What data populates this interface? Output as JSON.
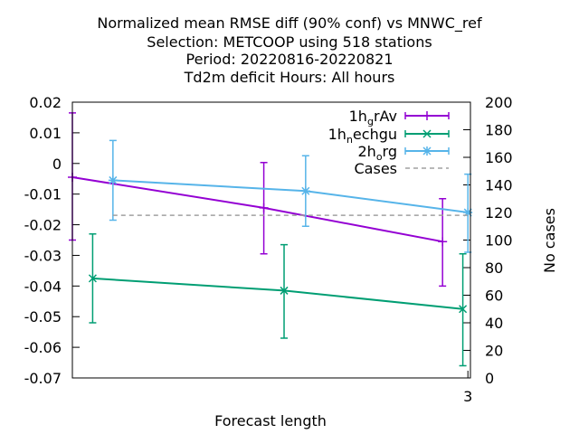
{
  "chart_data": {
    "type": "line",
    "title_lines": [
      "Normalized mean RMSE diff (90% conf) vs MNWC_ref",
      "Selection: METCOOP using   518 stations",
      "Period: 20220816-20220821",
      "Td2m deficit   Hours:  All hours"
    ],
    "xlabel": "Forecast length",
    "ylabel": "",
    "y2label": "No cases",
    "x_ticks": [
      {
        "value": 3,
        "label": "3"
      }
    ],
    "y_ticks": [
      "0.02",
      "0.01",
      "0",
      "-0.01",
      "-0.02",
      "-0.03",
      "-0.04",
      "-0.05",
      "-0.06",
      "-0.07"
    ],
    "y_tick_values": [
      0.02,
      0.01,
      0,
      -0.01,
      -0.02,
      -0.03,
      -0.04,
      -0.05,
      -0.06,
      -0.07
    ],
    "y2_ticks": [
      "200",
      "180",
      "160",
      "140",
      "120",
      "100",
      "80",
      "60",
      "40",
      "20",
      "0"
    ],
    "y2_tick_values": [
      200,
      180,
      160,
      140,
      120,
      100,
      80,
      60,
      40,
      20,
      0
    ],
    "xlim": [
      -0.12,
      3.02
    ],
    "ylim": [
      -0.07,
      0.02
    ],
    "y2lim": [
      0,
      200
    ],
    "legend_position": "top-right",
    "series": [
      {
        "name": "1h_grAv",
        "legend_parts": [
          [
            "1h",
            ""
          ],
          [
            "g",
            "sub"
          ],
          [
            "rAv",
            ""
          ]
        ],
        "color": "#9400d3",
        "marker": "plus",
        "axis": "y",
        "points": [
          {
            "x": -0.12,
            "y": -0.0045,
            "low": -0.025,
            "high": 0.0165
          },
          {
            "x": 1.39,
            "y": -0.0145,
            "low": -0.0295,
            "high": 0.0003
          },
          {
            "x": 2.8,
            "y": -0.0255,
            "low": -0.04,
            "high": -0.0115
          }
        ]
      },
      {
        "name": "1h_nechgu",
        "legend_parts": [
          [
            "1h",
            ""
          ],
          [
            "n",
            "sub"
          ],
          [
            "echgu",
            ""
          ]
        ],
        "color": "#009e73",
        "marker": "x",
        "axis": "y",
        "points": [
          {
            "x": 0.04,
            "y": -0.0375,
            "low": -0.052,
            "high": -0.023
          },
          {
            "x": 1.55,
            "y": -0.0415,
            "low": -0.057,
            "high": -0.0265
          },
          {
            "x": 2.96,
            "y": -0.0475,
            "low": -0.066,
            "high": -0.0295
          }
        ]
      },
      {
        "name": "2h_org",
        "legend_parts": [
          [
            "2h",
            ""
          ],
          [
            "o",
            "sub"
          ],
          [
            "rg",
            ""
          ]
        ],
        "color": "#56b4e9",
        "marker": "star",
        "axis": "y",
        "points": [
          {
            "x": 0.2,
            "y": -0.0055,
            "low": -0.0185,
            "high": 0.0075
          },
          {
            "x": 1.72,
            "y": -0.009,
            "low": -0.0205,
            "high": 0.0025
          },
          {
            "x": 3.0,
            "y": -0.016,
            "low": -0.029,
            "high": -0.0035
          }
        ]
      },
      {
        "name": "Cases",
        "legend_parts": [
          [
            "Cases",
            ""
          ]
        ],
        "color": "#a0a0a0",
        "marker": "none",
        "dashed": true,
        "axis": "y2",
        "points": [
          {
            "x": 0.2,
            "y": 118
          },
          {
            "x": 3.0,
            "y": 118
          }
        ]
      }
    ]
  }
}
